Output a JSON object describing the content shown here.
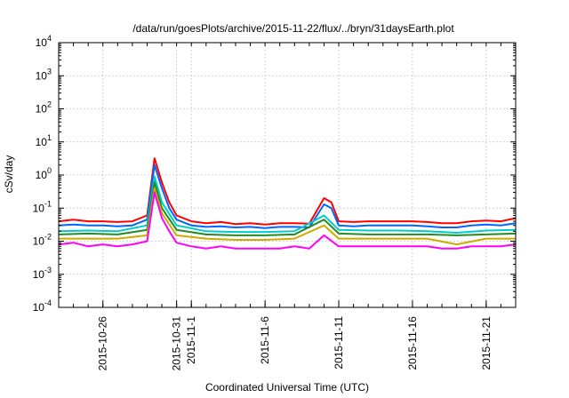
{
  "chart_data": {
    "type": "line",
    "title": "/data/run/goesPlots/archive/2015-11-22/flux/../bryn/31daysEarth.plot",
    "xlabel": "Coordinated Universal Time (UTC)",
    "ylabel": "cSv/day",
    "yscale": "log",
    "ylim": [
      0.0001,
      10000
    ],
    "xlim": [
      "2015-10-23",
      "2015-11-23"
    ],
    "grid": true,
    "y_ticks": [
      {
        "base": "10",
        "exp": "-4"
      },
      {
        "base": "10",
        "exp": "-3"
      },
      {
        "base": "10",
        "exp": "-2"
      },
      {
        "base": "10",
        "exp": "-1"
      },
      {
        "base": "10",
        "exp": "0"
      },
      {
        "base": "10",
        "exp": "1"
      },
      {
        "base": "10",
        "exp": "2"
      },
      {
        "base": "10",
        "exp": "3"
      },
      {
        "base": "10",
        "exp": "4"
      }
    ],
    "x_ticks": [
      {
        "date": "2015-10-26",
        "label": "2015-10-26"
      },
      {
        "date": "2015-10-31",
        "label": "2015-10-31"
      },
      {
        "date": "2015-11-01",
        "label": "2015-11-1"
      },
      {
        "date": "2015-11-06",
        "label": "2015-11-6"
      },
      {
        "date": "2015-11-11",
        "label": "2015-11-11"
      },
      {
        "date": "2015-11-16",
        "label": "2015-11-16"
      },
      {
        "date": "2015-11-21",
        "label": "2015-11-21"
      }
    ],
    "series": [
      {
        "color": "#ff0000",
        "values": [
          [
            "2015-10-23",
            0.04
          ],
          [
            "2015-10-24",
            0.045
          ],
          [
            "2015-10-25",
            0.04
          ],
          [
            "2015-10-26",
            0.04
          ],
          [
            "2015-10-27",
            0.038
          ],
          [
            "2015-10-28",
            0.04
          ],
          [
            "2015-10-29",
            0.06
          ],
          [
            "2015-10-29T12:00",
            3.2
          ],
          [
            "2015-10-30",
            0.6
          ],
          [
            "2015-10-30T12:00",
            0.15
          ],
          [
            "2015-10-31",
            0.06
          ],
          [
            "2015-11-01",
            0.04
          ],
          [
            "2015-11-02",
            0.035
          ],
          [
            "2015-11-03",
            0.038
          ],
          [
            "2015-11-04",
            0.033
          ],
          [
            "2015-11-05",
            0.035
          ],
          [
            "2015-11-06",
            0.032
          ],
          [
            "2015-11-07",
            0.035
          ],
          [
            "2015-11-08",
            0.035
          ],
          [
            "2015-11-09",
            0.034
          ],
          [
            "2015-11-10",
            0.2
          ],
          [
            "2015-11-10T12:00",
            0.15
          ],
          [
            "2015-11-11",
            0.04
          ],
          [
            "2015-11-12",
            0.038
          ],
          [
            "2015-11-13",
            0.04
          ],
          [
            "2015-11-14",
            0.04
          ],
          [
            "2015-11-15",
            0.04
          ],
          [
            "2015-11-16",
            0.04
          ],
          [
            "2015-11-17",
            0.038
          ],
          [
            "2015-11-18",
            0.035
          ],
          [
            "2015-11-19",
            0.035
          ],
          [
            "2015-11-20",
            0.04
          ],
          [
            "2015-11-21",
            0.042
          ],
          [
            "2015-11-22",
            0.04
          ],
          [
            "2015-11-23",
            0.05
          ]
        ]
      },
      {
        "color": "#0066ff",
        "values": [
          [
            "2015-10-23",
            0.03
          ],
          [
            "2015-10-24",
            0.032
          ],
          [
            "2015-10-25",
            0.03
          ],
          [
            "2015-10-26",
            0.03
          ],
          [
            "2015-10-27",
            0.028
          ],
          [
            "2015-10-28",
            0.03
          ],
          [
            "2015-10-29",
            0.045
          ],
          [
            "2015-10-29T12:00",
            2.0
          ],
          [
            "2015-10-30",
            0.4
          ],
          [
            "2015-10-30T12:00",
            0.1
          ],
          [
            "2015-10-31",
            0.045
          ],
          [
            "2015-11-01",
            0.03
          ],
          [
            "2015-11-02",
            0.027
          ],
          [
            "2015-11-03",
            0.028
          ],
          [
            "2015-11-04",
            0.026
          ],
          [
            "2015-11-05",
            0.027
          ],
          [
            "2015-11-06",
            0.025
          ],
          [
            "2015-11-07",
            0.027
          ],
          [
            "2015-11-08",
            0.027
          ],
          [
            "2015-11-09",
            0.026
          ],
          [
            "2015-11-10",
            0.13
          ],
          [
            "2015-11-10T12:00",
            0.1
          ],
          [
            "2015-11-11",
            0.03
          ],
          [
            "2015-11-12",
            0.028
          ],
          [
            "2015-11-13",
            0.03
          ],
          [
            "2015-11-14",
            0.03
          ],
          [
            "2015-11-15",
            0.03
          ],
          [
            "2015-11-16",
            0.03
          ],
          [
            "2015-11-17",
            0.028
          ],
          [
            "2015-11-18",
            0.026
          ],
          [
            "2015-11-19",
            0.026
          ],
          [
            "2015-11-20",
            0.03
          ],
          [
            "2015-11-21",
            0.032
          ],
          [
            "2015-11-22",
            0.03
          ],
          [
            "2015-11-23",
            0.035
          ]
        ]
      },
      {
        "color": "#00cccc",
        "values": [
          [
            "2015-10-23",
            0.02
          ],
          [
            "2015-10-25",
            0.021
          ],
          [
            "2015-10-27",
            0.02
          ],
          [
            "2015-10-29",
            0.03
          ],
          [
            "2015-10-29T12:00",
            0.9
          ],
          [
            "2015-10-30",
            0.15
          ],
          [
            "2015-10-31",
            0.03
          ],
          [
            "2015-11-02",
            0.02
          ],
          [
            "2015-11-04",
            0.019
          ],
          [
            "2015-11-06",
            0.019
          ],
          [
            "2015-11-08",
            0.02
          ],
          [
            "2015-11-10",
            0.06
          ],
          [
            "2015-11-11",
            0.022
          ],
          [
            "2015-11-13",
            0.021
          ],
          [
            "2015-11-15",
            0.021
          ],
          [
            "2015-11-17",
            0.02
          ],
          [
            "2015-11-19",
            0.018
          ],
          [
            "2015-11-21",
            0.021
          ],
          [
            "2015-11-23",
            0.022
          ]
        ]
      },
      {
        "color": "#228b22",
        "values": [
          [
            "2015-10-23",
            0.016
          ],
          [
            "2015-10-25",
            0.017
          ],
          [
            "2015-10-27",
            0.016
          ],
          [
            "2015-10-29",
            0.022
          ],
          [
            "2015-10-29T12:00",
            0.6
          ],
          [
            "2015-10-30",
            0.1
          ],
          [
            "2015-10-31",
            0.022
          ],
          [
            "2015-11-02",
            0.016
          ],
          [
            "2015-11-04",
            0.015
          ],
          [
            "2015-11-06",
            0.015
          ],
          [
            "2015-11-08",
            0.016
          ],
          [
            "2015-11-10",
            0.045
          ],
          [
            "2015-11-11",
            0.017
          ],
          [
            "2015-11-13",
            0.016
          ],
          [
            "2015-11-15",
            0.016
          ],
          [
            "2015-11-17",
            0.016
          ],
          [
            "2015-11-19",
            0.015
          ],
          [
            "2015-11-21",
            0.016
          ],
          [
            "2015-11-23",
            0.017
          ]
        ]
      },
      {
        "color": "#ccaa00",
        "values": [
          [
            "2015-10-23",
            0.012
          ],
          [
            "2015-10-25",
            0.012
          ],
          [
            "2015-10-27",
            0.012
          ],
          [
            "2015-10-29",
            0.015
          ],
          [
            "2015-10-29T12:00",
            0.4
          ],
          [
            "2015-10-30",
            0.07
          ],
          [
            "2015-10-31",
            0.015
          ],
          [
            "2015-11-02",
            0.012
          ],
          [
            "2015-11-04",
            0.011
          ],
          [
            "2015-11-06",
            0.011
          ],
          [
            "2015-11-08",
            0.012
          ],
          [
            "2015-11-10",
            0.03
          ],
          [
            "2015-11-11",
            0.012
          ],
          [
            "2015-11-13",
            0.012
          ],
          [
            "2015-11-15",
            0.012
          ],
          [
            "2015-11-17",
            0.012
          ],
          [
            "2015-11-19",
            0.008
          ],
          [
            "2015-11-21",
            0.012
          ],
          [
            "2015-11-23",
            0.012
          ]
        ]
      },
      {
        "color": "#ff00ff",
        "values": [
          [
            "2015-10-23",
            0.008
          ],
          [
            "2015-10-24",
            0.009
          ],
          [
            "2015-10-25",
            0.007
          ],
          [
            "2015-10-26",
            0.008
          ],
          [
            "2015-10-27",
            0.007
          ],
          [
            "2015-10-28",
            0.008
          ],
          [
            "2015-10-29",
            0.01
          ],
          [
            "2015-10-29T12:00",
            0.3
          ],
          [
            "2015-10-30",
            0.05
          ],
          [
            "2015-10-30T12:00",
            0.02
          ],
          [
            "2015-10-31",
            0.009
          ],
          [
            "2015-11-01",
            0.007
          ],
          [
            "2015-11-02",
            0.006
          ],
          [
            "2015-11-03",
            0.007
          ],
          [
            "2015-11-04",
            0.006
          ],
          [
            "2015-11-05",
            0.006
          ],
          [
            "2015-11-06",
            0.006
          ],
          [
            "2015-11-07",
            0.006
          ],
          [
            "2015-11-08",
            0.007
          ],
          [
            "2015-11-09",
            0.006
          ],
          [
            "2015-11-10",
            0.015
          ],
          [
            "2015-11-11",
            0.007
          ],
          [
            "2015-11-12",
            0.007
          ],
          [
            "2015-11-13",
            0.007
          ],
          [
            "2015-11-14",
            0.007
          ],
          [
            "2015-11-15",
            0.007
          ],
          [
            "2015-11-16",
            0.007
          ],
          [
            "2015-11-17",
            0.007
          ],
          [
            "2015-11-18",
            0.006
          ],
          [
            "2015-11-19",
            0.006
          ],
          [
            "2015-11-20",
            0.007
          ],
          [
            "2015-11-21",
            0.007
          ],
          [
            "2015-11-22",
            0.007
          ],
          [
            "2015-11-23",
            0.008
          ]
        ]
      }
    ]
  }
}
